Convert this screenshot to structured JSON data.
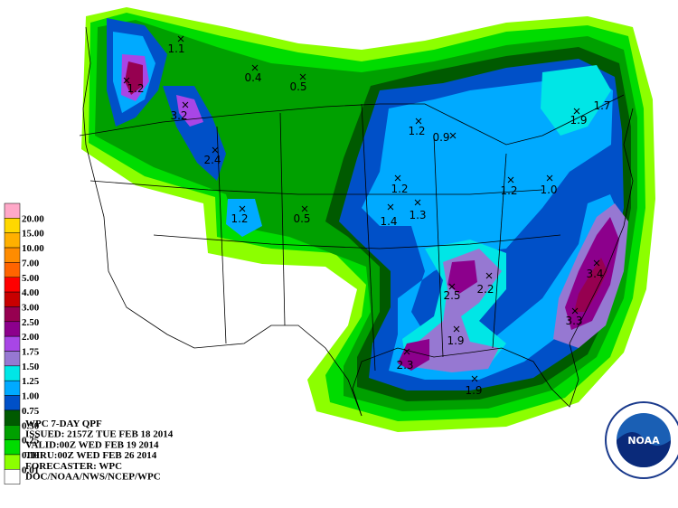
{
  "legend": [
    {
      "label": "20.00",
      "color": "#ffa8c8"
    },
    {
      "label": "15.00",
      "color": "#ffd800"
    },
    {
      "label": "10.00",
      "color": "#ffb000"
    },
    {
      "label": "7.00",
      "color": "#ff8c00"
    },
    {
      "label": "5.00",
      "color": "#ff6400"
    },
    {
      "label": "4.00",
      "color": "#ff0000"
    },
    {
      "label": "3.00",
      "color": "#c80000"
    },
    {
      "label": "2.50",
      "color": "#960050"
    },
    {
      "label": "2.00",
      "color": "#8c008c"
    },
    {
      "label": "1.75",
      "color": "#a846e6"
    },
    {
      "label": "1.50",
      "color": "#9678d2"
    },
    {
      "label": "1.25",
      "color": "#00e6e6"
    },
    {
      "label": "1.00",
      "color": "#00aaff"
    },
    {
      "label": "0.75",
      "color": "#0050c8"
    },
    {
      "label": "0.50",
      "color": "#005a00"
    },
    {
      "label": "0.25",
      "color": "#00a000"
    },
    {
      "label": "0.10",
      "color": "#00dc00"
    },
    {
      "label": "0.01",
      "color": "#8cff00"
    },
    {
      "color": "#ffffff"
    }
  ],
  "info": [
    "WPC 7-DAY QPF",
    "ISSUED: 2157Z TUE FEB 18 2014",
    "VALID:00Z WED FEB 19 2014",
    "THRU:00Z WED FEB 26 2014",
    "FORECASTER: WPC",
    "DOC/NOAA/NWS/NCEP/WPC"
  ],
  "points": [
    "1.1",
    "0.4",
    "0.5",
    "1.2",
    "3.2",
    "2.4",
    "1.2",
    "0.5",
    "1.2",
    "0.9",
    "1.9",
    "1.7",
    "1.2",
    "1.4",
    "1.3",
    "1.2",
    "1.0",
    "2.5",
    "2.2",
    "3.4",
    "3.3",
    "1.9",
    "2.3",
    "1.9"
  ],
  "logo": "NOAA"
}
